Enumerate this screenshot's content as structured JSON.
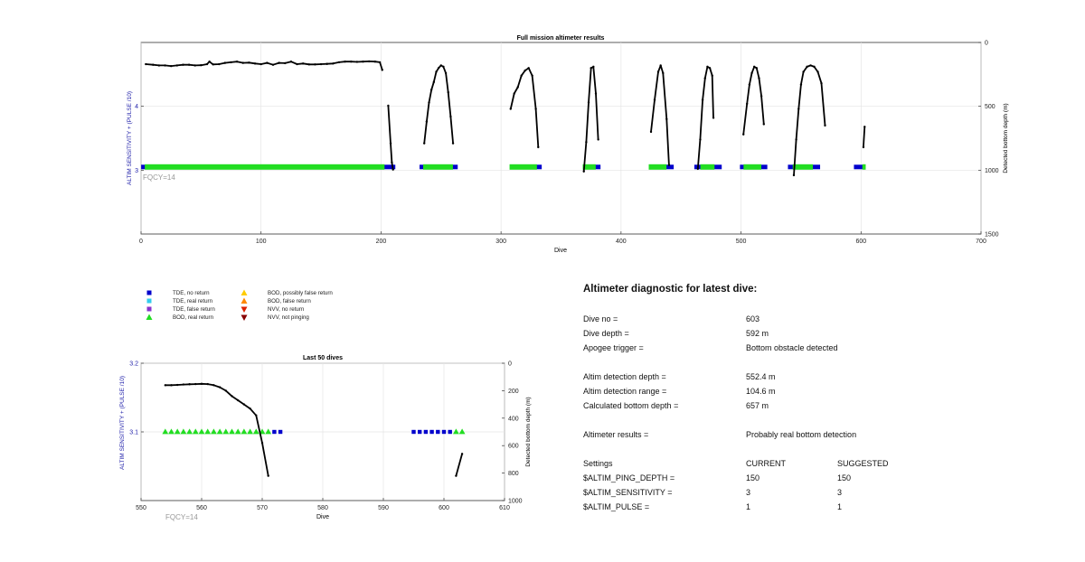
{
  "fig1": {
    "title": "Full mission altimeter results",
    "xlabel": "Dive",
    "ylabel_left": "ALTIM SENSITIVITY + (PULSE /10)",
    "ylabel_right": "Detected bottom depth (m)",
    "fqcy_label": "FQCY=14",
    "x_ticks": [
      "0",
      "100",
      "200",
      "300",
      "400",
      "500",
      "600",
      "700"
    ],
    "left_ticks": [
      "3",
      "4"
    ],
    "right_ticks": [
      "0",
      "500",
      "1000",
      "1500"
    ]
  },
  "fig2": {
    "title": "Last 50 dives",
    "xlabel": "Dive",
    "ylabel_left": "ALTIM SENSITIVITY + (PULSE /10)",
    "ylabel_right": "Detected bottom depth (m)",
    "fqcy_label": "FQCY=14",
    "x_ticks": [
      "550",
      "560",
      "570",
      "580",
      "590",
      "600",
      "610"
    ],
    "left_ticks": [
      "3.1",
      "3.2"
    ],
    "right_ticks": [
      "0",
      "200",
      "400",
      "600",
      "800",
      "1000"
    ]
  },
  "legend": [
    {
      "label": "TDE, no return",
      "marker": "square",
      "color": "#0000cc"
    },
    {
      "label": "TDE, real return",
      "marker": "square",
      "color": "#33ccee"
    },
    {
      "label": "TDE, false return",
      "marker": "square",
      "color": "#8833cc"
    },
    {
      "label": "BOD, real return",
      "marker": "triangle-up",
      "color": "#22dd22"
    },
    {
      "label": "BOD, possibly false return",
      "marker": "triangle-up",
      "color": "#ffcc00"
    },
    {
      "label": "BOD, false return",
      "marker": "triangle-up",
      "color": "#ff8800"
    },
    {
      "label": "NVV, no return",
      "marker": "triangle-down",
      "color": "#dd2200"
    },
    {
      "label": "NVV, not pinging",
      "marker": "triangle-down",
      "color": "#880000"
    }
  ],
  "diagnostic": {
    "heading": "Altimeter diagnostic for latest dive:",
    "dive_no_label": "Dive no =",
    "dive_no": "603",
    "dive_depth_label": "Dive depth =",
    "dive_depth": "592 m",
    "apogee_label": "Apogee trigger =",
    "apogee": "Bottom obstacle detected",
    "det_depth_label": "Altim detection depth =",
    "det_depth": "552.4 m",
    "det_range_label": "Altim detection range =",
    "det_range": "104.6 m",
    "calc_bottom_label": "Calculated bottom depth =",
    "calc_bottom": "657 m",
    "results_label": "Altimeter results =",
    "results": "Probably real bottom detection",
    "settings_label": "Settings",
    "current_label": "CURRENT",
    "suggested_label": "SUGGESTED",
    "ping_label": "$ALTIM_PING_DEPTH =",
    "ping_current": "150",
    "ping_suggested": "150",
    "sens_label": "$ALTIM_SENSITIVITY =",
    "sens_current": "3",
    "sens_suggested": "3",
    "pulse_label": "$ALTIM_PULSE =",
    "pulse_current": "1",
    "pulse_suggested": "1"
  },
  "chart_data": [
    {
      "type": "scatter",
      "title": "Full mission altimeter results",
      "xlabel": "Dive",
      "ylabel": "ALTIM SENSITIVITY + (PULSE /10)",
      "y2label": "Detected bottom depth (m)",
      "xlim": [
        0,
        700
      ],
      "ylim": [
        2.0,
        5.0
      ],
      "y2lim": [
        1500,
        0
      ],
      "grid": true,
      "settings_series": [
        {
          "name": "TDE, no return",
          "color": "#0000cc",
          "value": 3.05,
          "x_ranges": [
            [
              1,
              3
            ],
            [
              203,
              211
            ],
            [
              233,
              236
            ],
            [
              260,
              263
            ],
            [
              330,
              333
            ],
            [
              379,
              382
            ],
            [
              425,
              427
            ],
            [
              438,
              443
            ],
            [
              462,
              466
            ],
            [
              478,
              483
            ],
            [
              500,
              503
            ],
            [
              517,
              521
            ],
            [
              540,
              543
            ],
            [
              560,
              565
            ],
            [
              595,
              601
            ]
          ]
        },
        {
          "name": "BOD, real return",
          "color": "#22dd22",
          "value": 3.05,
          "x_ranges": [
            [
              4,
              202
            ],
            [
              236,
              259
            ],
            [
              308,
              329
            ],
            [
              369,
              378
            ],
            [
              424,
              437
            ],
            [
              467,
              477
            ],
            [
              503,
              516
            ],
            [
              544,
              559
            ],
            [
              602,
              603
            ]
          ]
        }
      ],
      "depth_series": [
        {
          "x": [
            4,
            10,
            15,
            20,
            25,
            30,
            35,
            40,
            45,
            50,
            55,
            57,
            60,
            65,
            70,
            75,
            80,
            85,
            90,
            95,
            100,
            105,
            110,
            115,
            120,
            125,
            130,
            135,
            140,
            145,
            150,
            155,
            160,
            165,
            170,
            175,
            180,
            185,
            190,
            195,
            199,
            201
          ],
          "y": [
            170,
            175,
            180,
            180,
            185,
            180,
            175,
            175,
            180,
            178,
            170,
            150,
            172,
            170,
            160,
            155,
            150,
            160,
            158,
            165,
            170,
            160,
            175,
            160,
            162,
            150,
            170,
            165,
            172,
            172,
            170,
            168,
            165,
            155,
            150,
            150,
            152,
            150,
            148,
            150,
            155,
            215
          ]
        },
        {
          "x": [
            206,
            208,
            209,
            210
          ],
          "y": [
            495,
            790,
            940,
            995
          ]
        },
        {
          "x": [
            236,
            238,
            240,
            242,
            244,
            246,
            248,
            250,
            252,
            254,
            256,
            258,
            260
          ],
          "y": [
            790,
            620,
            470,
            370,
            310,
            230,
            200,
            180,
            190,
            240,
            390,
            580,
            790
          ]
        },
        {
          "x": [
            308,
            311,
            314,
            317,
            320,
            323,
            326,
            329,
            331
          ],
          "y": [
            520,
            400,
            350,
            260,
            220,
            200,
            260,
            520,
            820
          ]
        },
        {
          "x": [
            369,
            371,
            373,
            375,
            377,
            379,
            381
          ],
          "y": [
            1010,
            780,
            470,
            200,
            190,
            400,
            760
          ]
        },
        {
          "x": [
            425,
            428,
            431,
            433,
            435,
            438,
            440
          ],
          "y": [
            700,
            450,
            230,
            180,
            240,
            600,
            960
          ]
        },
        {
          "x": [
            464,
            466,
            468,
            470,
            472,
            474,
            476,
            477
          ],
          "y": [
            990,
            760,
            450,
            280,
            190,
            200,
            260,
            590
          ]
        },
        {
          "x": [
            502,
            505,
            507,
            509,
            511,
            513,
            515,
            517,
            519
          ],
          "y": [
            720,
            480,
            330,
            240,
            190,
            200,
            280,
            420,
            640
          ]
        },
        {
          "x": [
            544,
            546,
            548,
            550,
            552,
            555,
            558,
            561,
            564,
            567,
            570
          ],
          "y": [
            1040,
            760,
            520,
            330,
            230,
            190,
            180,
            190,
            230,
            320,
            650
          ]
        },
        {
          "x": [
            602,
            603
          ],
          "y": [
            820,
            660
          ]
        }
      ]
    },
    {
      "type": "scatter",
      "title": "Last 50 dives",
      "xlabel": "Dive",
      "ylabel": "ALTIM SENSITIVITY + (PULSE /10)",
      "y2label": "Detected bottom depth (m)",
      "xlim": [
        550,
        610
      ],
      "ylim": [
        3.0,
        3.2
      ],
      "y2lim": [
        1000,
        0
      ],
      "grid": true,
      "points": [
        {
          "name": "BOD, real return",
          "color": "#22dd22",
          "value": 3.1,
          "x": [
            554,
            555,
            556,
            557,
            558,
            559,
            560,
            561,
            562,
            563,
            564,
            565,
            566,
            567,
            568,
            569,
            570,
            571,
            602,
            603
          ]
        },
        {
          "name": "TDE, no return",
          "color": "#0000cc",
          "value": 3.1,
          "x": [
            572,
            573,
            595,
            596,
            597,
            598,
            599,
            600,
            601
          ]
        }
      ],
      "depth_series": [
        {
          "x": [
            554,
            555,
            556,
            557,
            558,
            559,
            560,
            561,
            562,
            563,
            564,
            565,
            566,
            567,
            568,
            569,
            570,
            571
          ],
          "y": [
            160,
            160,
            158,
            155,
            153,
            152,
            150,
            152,
            160,
            175,
            200,
            240,
            270,
            300,
            330,
            380,
            580,
            820
          ]
        },
        {
          "x": [
            602,
            603
          ],
          "y": [
            820,
            660
          ]
        }
      ]
    }
  ]
}
